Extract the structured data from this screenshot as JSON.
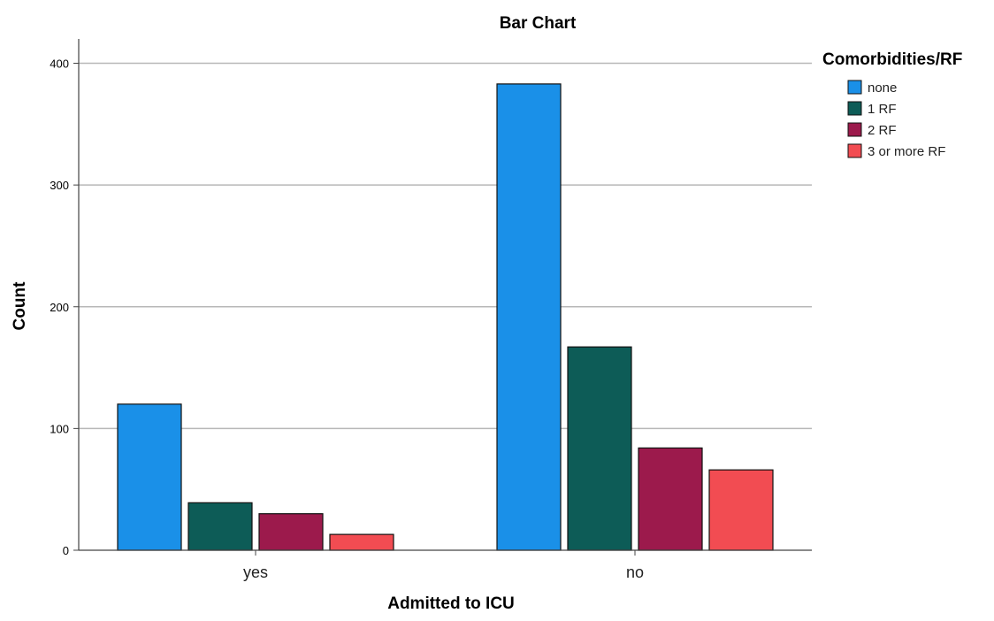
{
  "chart_data": {
    "type": "bar",
    "title": "Bar Chart",
    "xlabel": "Admitted to ICU",
    "ylabel": "Count",
    "categories": [
      "yes",
      "no"
    ],
    "ylim": [
      0,
      420
    ],
    "yticks": [
      0,
      100,
      200,
      300,
      400
    ],
    "grid": true,
    "legend": {
      "title": "Comorbidities/RF",
      "placement": "right"
    },
    "series": [
      {
        "name": "none",
        "color": "#1a90e8",
        "values": [
          120,
          383
        ]
      },
      {
        "name": "1 RF",
        "color": "#0d5c57",
        "values": [
          39,
          167
        ]
      },
      {
        "name": "2 RF",
        "color": "#9c1a4c",
        "values": [
          30,
          84
        ]
      },
      {
        "name": "3 or more RF",
        "color": "#f24c52",
        "values": [
          13,
          66
        ]
      }
    ]
  }
}
